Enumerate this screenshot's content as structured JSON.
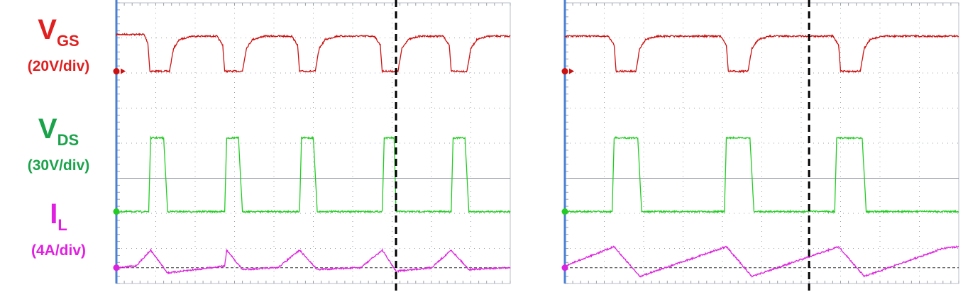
{
  "labels": [
    {
      "main": "V",
      "sub": "GS",
      "scale": "(20V/div)",
      "color": "#e02020"
    },
    {
      "main": "V",
      "sub": "DS",
      "scale": "(30V/div)",
      "color": "#1aa34a"
    },
    {
      "main": "I",
      "sub": "L",
      "scale": "(4A/div)",
      "color": "#e020e0"
    }
  ],
  "chart_data": [
    {
      "type": "line",
      "title": "",
      "xlabel": "",
      "ylabel": "",
      "grid": true,
      "x_divisions": 10,
      "y_divisions": 8,
      "cursor_x_div": 7.1,
      "series": [
        {
          "name": "V_GS",
          "unit_per_div": "20V/div",
          "color": "#cc1111",
          "baseline_div": 1.95,
          "points": [
            [
              0,
              0.9
            ],
            [
              0.7,
              0.9
            ],
            [
              0.8,
              1.15
            ],
            [
              0.85,
              1.95
            ],
            [
              1.35,
              1.95
            ],
            [
              1.45,
              1.3
            ],
            [
              1.6,
              1.05
            ],
            [
              1.9,
              0.95
            ],
            [
              2.55,
              0.95
            ],
            [
              2.7,
              1.2
            ],
            [
              2.75,
              1.95
            ],
            [
              3.2,
              1.95
            ],
            [
              3.3,
              1.3
            ],
            [
              3.45,
              1.05
            ],
            [
              3.75,
              0.95
            ],
            [
              4.45,
              0.95
            ],
            [
              4.6,
              1.2
            ],
            [
              4.65,
              1.95
            ],
            [
              5.05,
              1.95
            ],
            [
              5.15,
              1.3
            ],
            [
              5.3,
              1.05
            ],
            [
              5.6,
              0.95
            ],
            [
              6.55,
              0.95
            ],
            [
              6.7,
              1.2
            ],
            [
              6.75,
              1.95
            ],
            [
              7.15,
              1.95
            ],
            [
              7.25,
              1.3
            ],
            [
              7.4,
              1.05
            ],
            [
              7.7,
              0.95
            ],
            [
              8.3,
              0.95
            ],
            [
              8.45,
              1.2
            ],
            [
              8.5,
              1.95
            ],
            [
              8.9,
              1.95
            ],
            [
              9.0,
              1.3
            ],
            [
              9.15,
              1.05
            ],
            [
              9.45,
              0.95
            ],
            [
              10,
              0.95
            ]
          ]
        },
        {
          "name": "V_DS",
          "unit_per_div": "30V/div",
          "color": "#22cc22",
          "baseline_div": 5.95,
          "points": [
            [
              0,
              5.95
            ],
            [
              0.82,
              5.95
            ],
            [
              0.87,
              3.85
            ],
            [
              1.2,
              3.85
            ],
            [
              1.3,
              5.95
            ],
            [
              2.75,
              5.95
            ],
            [
              2.8,
              3.85
            ],
            [
              3.1,
              3.85
            ],
            [
              3.2,
              5.95
            ],
            [
              4.65,
              5.95
            ],
            [
              4.7,
              3.85
            ],
            [
              5.0,
              3.85
            ],
            [
              5.1,
              5.95
            ],
            [
              6.75,
              5.95
            ],
            [
              6.8,
              3.85
            ],
            [
              7.05,
              3.85
            ],
            [
              7.1,
              5.95
            ],
            [
              8.5,
              5.95
            ],
            [
              8.55,
              3.85
            ],
            [
              8.85,
              3.85
            ],
            [
              8.95,
              5.95
            ],
            [
              10,
              5.95
            ]
          ]
        },
        {
          "name": "I_L",
          "unit_per_div": "4A/div",
          "color": "#dd22dd",
          "baseline_div": 7.55,
          "points": [
            [
              0,
              7.55
            ],
            [
              0.5,
              7.5
            ],
            [
              0.87,
              7.05
            ],
            [
              1.3,
              7.7
            ],
            [
              2.75,
              7.5
            ],
            [
              2.8,
              7.05
            ],
            [
              3.2,
              7.6
            ],
            [
              4.1,
              7.55
            ],
            [
              4.65,
              7.05
            ],
            [
              5.1,
              7.6
            ],
            [
              6.2,
              7.55
            ],
            [
              6.75,
              7.05
            ],
            [
              7.1,
              7.65
            ],
            [
              8.0,
              7.55
            ],
            [
              8.5,
              7.05
            ],
            [
              8.95,
              7.6
            ],
            [
              10,
              7.55
            ]
          ]
        }
      ]
    },
    {
      "type": "line",
      "title": "",
      "xlabel": "",
      "ylabel": "",
      "grid": true,
      "x_divisions": 10,
      "y_divisions": 8,
      "cursor_x_div": 6.2,
      "series": [
        {
          "name": "V_GS",
          "unit_per_div": "20V/div",
          "color": "#cc1111",
          "baseline_div": 1.95,
          "points": [
            [
              0,
              0.95
            ],
            [
              1.1,
              0.95
            ],
            [
              1.25,
              1.2
            ],
            [
              1.3,
              1.95
            ],
            [
              1.8,
              1.95
            ],
            [
              1.9,
              1.3
            ],
            [
              2.05,
              1.05
            ],
            [
              2.35,
              0.95
            ],
            [
              3.95,
              0.95
            ],
            [
              4.1,
              1.2
            ],
            [
              4.15,
              1.95
            ],
            [
              4.65,
              1.95
            ],
            [
              4.75,
              1.3
            ],
            [
              4.9,
              1.05
            ],
            [
              5.2,
              0.95
            ],
            [
              6.8,
              0.95
            ],
            [
              6.95,
              1.2
            ],
            [
              7.0,
              1.95
            ],
            [
              7.5,
              1.95
            ],
            [
              7.6,
              1.3
            ],
            [
              7.75,
              1.05
            ],
            [
              8.05,
              0.95
            ],
            [
              10,
              0.95
            ]
          ]
        },
        {
          "name": "V_DS",
          "unit_per_div": "30V/div",
          "color": "#22cc22",
          "baseline_div": 5.95,
          "points": [
            [
              0,
              5.95
            ],
            [
              1.2,
              5.95
            ],
            [
              1.25,
              3.85
            ],
            [
              1.85,
              3.85
            ],
            [
              1.95,
              5.95
            ],
            [
              4.05,
              5.95
            ],
            [
              4.1,
              3.85
            ],
            [
              4.7,
              3.85
            ],
            [
              4.8,
              5.95
            ],
            [
              6.85,
              5.95
            ],
            [
              6.9,
              3.85
            ],
            [
              7.55,
              3.85
            ],
            [
              7.65,
              5.95
            ],
            [
              10,
              5.95
            ]
          ]
        },
        {
          "name": "I_L",
          "unit_per_div": "4A/div",
          "color": "#dd22dd",
          "baseline_div": 7.55,
          "points": [
            [
              0,
              7.5
            ],
            [
              1.25,
              6.95
            ],
            [
              1.9,
              7.8
            ],
            [
              4.1,
              6.95
            ],
            [
              4.75,
              7.8
            ],
            [
              6.95,
              6.95
            ],
            [
              7.6,
              7.8
            ],
            [
              9.6,
              7.0
            ],
            [
              10,
              6.95
            ]
          ]
        }
      ]
    }
  ]
}
